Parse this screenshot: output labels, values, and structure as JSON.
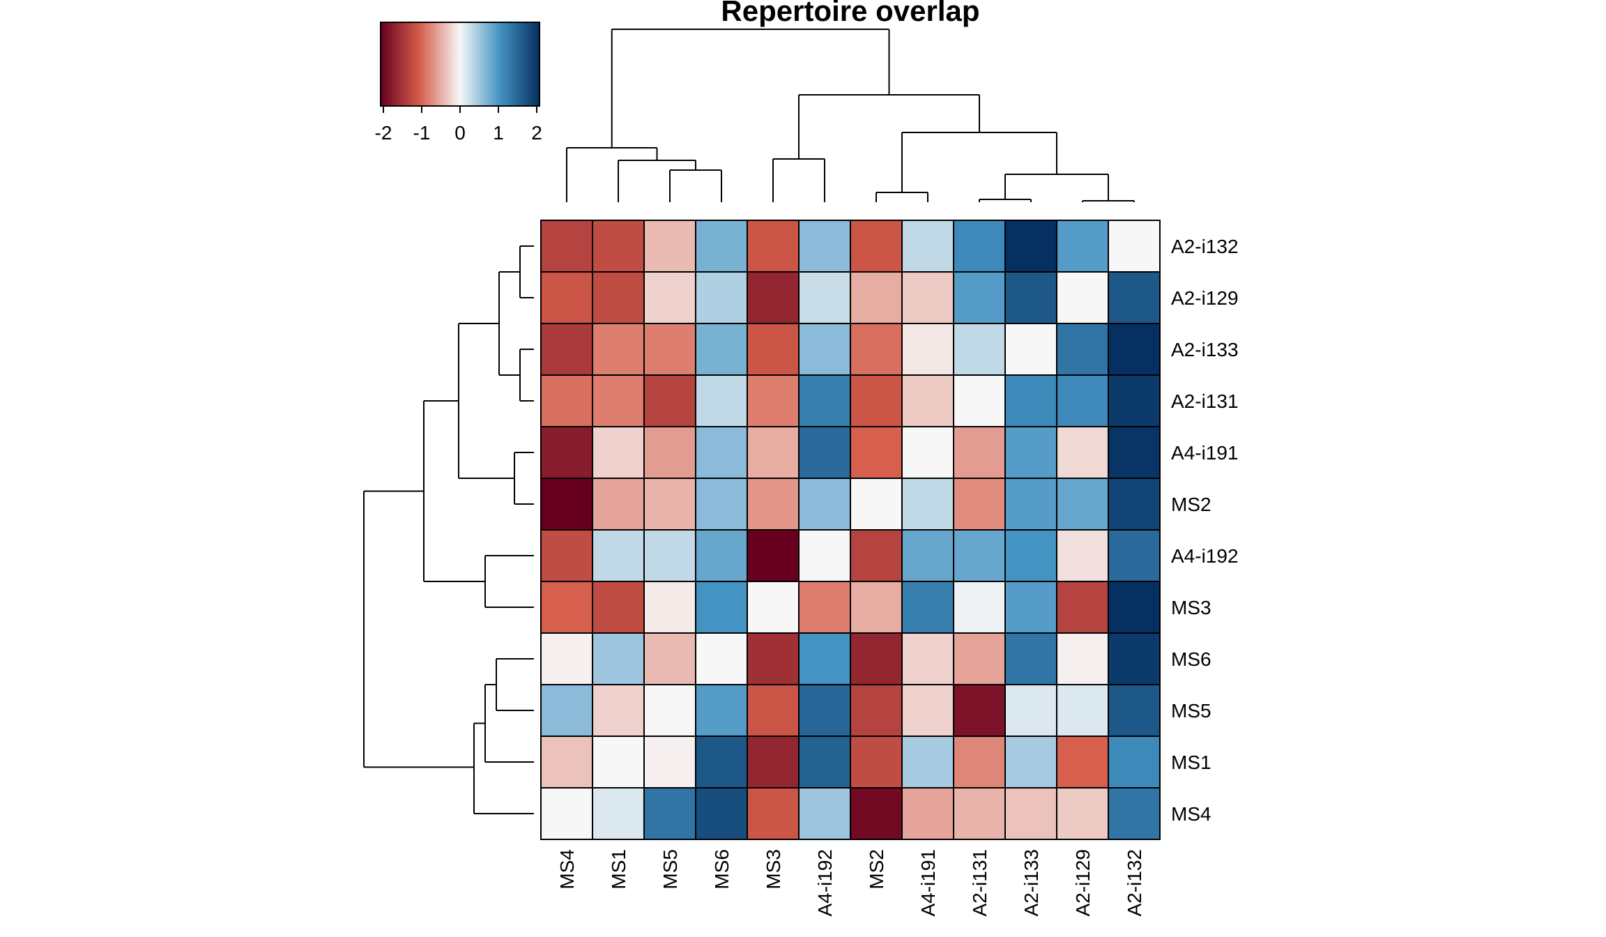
{
  "chart_data": {
    "type": "heatmap",
    "title": "Repertoire overlap",
    "x_categories": [
      "MS4",
      "MS1",
      "MS5",
      "MS6",
      "MS3",
      "A4-i192",
      "MS2",
      "A4-i191",
      "A2-i131",
      "A2-i133",
      "A2-i129",
      "A2-i132"
    ],
    "y_categories": [
      "A2-i132",
      "A2-i129",
      "A2-i133",
      "A2-i131",
      "A4-i191",
      "MS2",
      "A4-i192",
      "MS3",
      "MS6",
      "MS5",
      "MS1",
      "MS4"
    ],
    "values": [
      [
        -1.3,
        -1.2,
        -0.4,
        0.7,
        -1.1,
        0.6,
        -1.1,
        0.3,
        1.1,
        2.0,
        0.9,
        0.0
      ],
      [
        -1.1,
        -1.2,
        -0.25,
        0.4,
        -1.6,
        0.25,
        -0.5,
        -0.3,
        0.9,
        1.6,
        0.0,
        1.6
      ],
      [
        -1.4,
        -0.8,
        -0.8,
        0.7,
        -1.1,
        0.6,
        -0.9,
        -0.1,
        0.3,
        0.0,
        1.3,
        2.0
      ],
      [
        -0.9,
        -0.8,
        -1.3,
        0.3,
        -0.8,
        1.2,
        -1.1,
        -0.3,
        0.0,
        1.1,
        1.1,
        1.9
      ],
      [
        -1.7,
        -0.25,
        -0.6,
        0.6,
        -0.5,
        1.4,
        -1.0,
        0.0,
        -0.6,
        0.9,
        -0.2,
        1.95
      ],
      [
        -2.0,
        -0.55,
        -0.45,
        0.6,
        -0.65,
        0.6,
        0.0,
        0.3,
        -0.7,
        0.9,
        0.8,
        1.8
      ],
      [
        -1.2,
        0.3,
        0.3,
        0.8,
        -2.0,
        0.0,
        -1.3,
        0.8,
        0.8,
        1.0,
        -0.15,
        1.4
      ],
      [
        -1.0,
        -1.2,
        -0.08,
        1.0,
        0.0,
        -0.8,
        -0.5,
        1.2,
        0.05,
        0.9,
        -1.3,
        2.0
      ],
      [
        -0.05,
        0.5,
        -0.4,
        0.0,
        -1.5,
        1.0,
        -1.6,
        -0.25,
        -0.55,
        1.3,
        -0.05,
        1.9
      ],
      [
        0.6,
        -0.25,
        0.0,
        0.9,
        -1.1,
        1.45,
        -1.3,
        -0.25,
        -1.8,
        0.15,
        0.15,
        1.6
      ],
      [
        -0.35,
        0.0,
        -0.05,
        1.6,
        -1.6,
        1.5,
        -1.2,
        0.45,
        -0.75,
        0.45,
        -1.0,
        1.1
      ],
      [
        0.0,
        0.15,
        1.3,
        1.7,
        -1.1,
        0.5,
        -1.9,
        -0.55,
        -0.45,
        -0.35,
        -0.3,
        1.3
      ]
    ],
    "colorbar": {
      "ticks": [
        "-2",
        "-1",
        "0",
        "1",
        "2"
      ],
      "range": [
        -2,
        2
      ],
      "colors": [
        "#67001f",
        "#d6604d",
        "#f7f7f7",
        "#4393c3",
        "#053061"
      ]
    }
  }
}
